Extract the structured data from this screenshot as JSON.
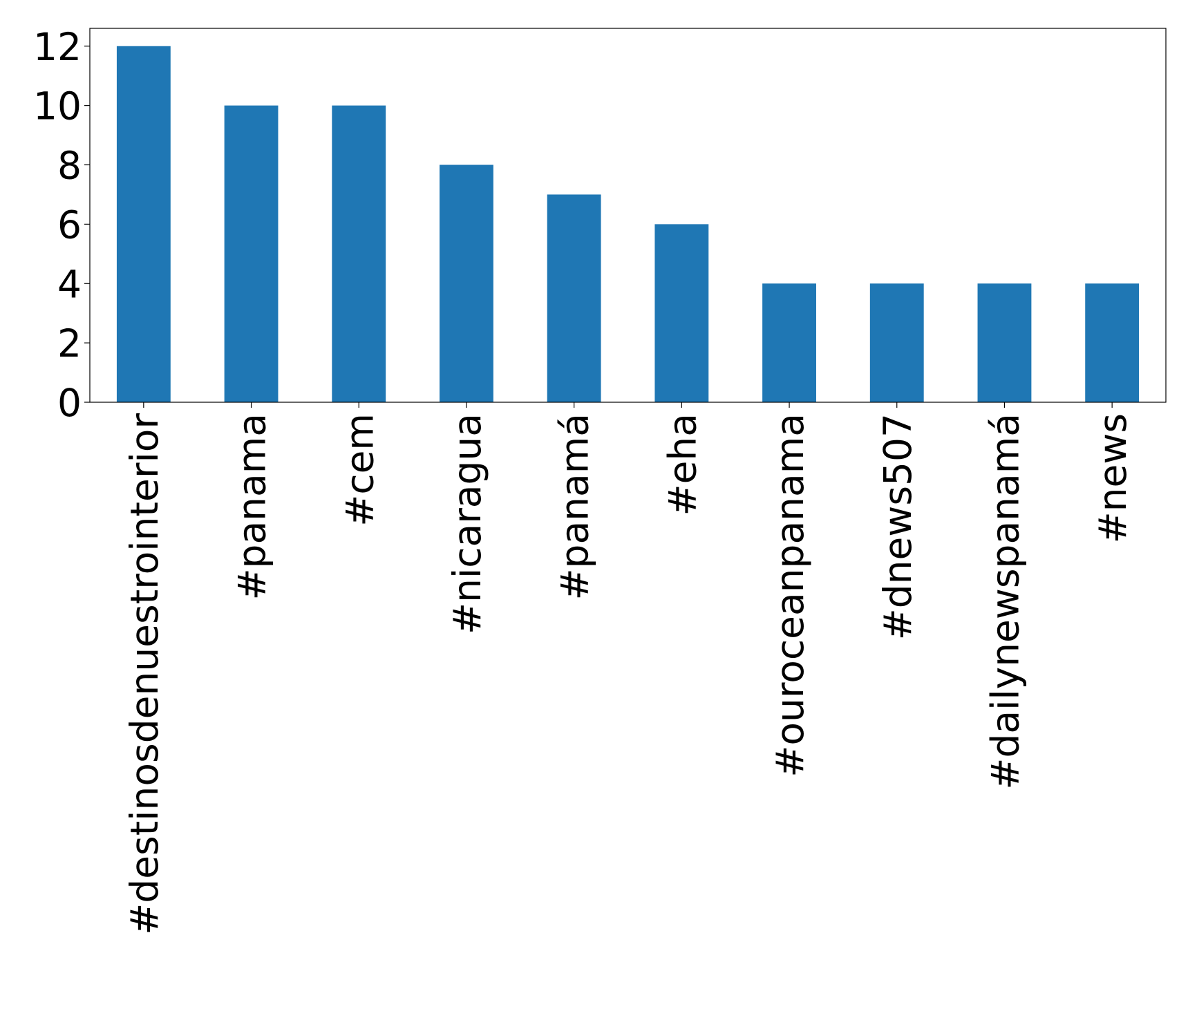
{
  "chart_data": {
    "type": "bar",
    "categories": [
      "#destinosdenuestrointerior",
      "#panama",
      "#cem",
      "#nicaragua",
      "#panamá",
      "#eha",
      "#ouroceanpanama",
      "#dnews507",
      "#dailynewspanamá",
      "#news"
    ],
    "values": [
      12,
      10,
      10,
      8,
      7,
      6,
      4,
      4,
      4,
      4
    ],
    "color": "#1f77b4",
    "ylim": [
      0,
      12.6
    ],
    "yticks": [
      0,
      2,
      4,
      6,
      8,
      10,
      12
    ],
    "grid": false
  }
}
